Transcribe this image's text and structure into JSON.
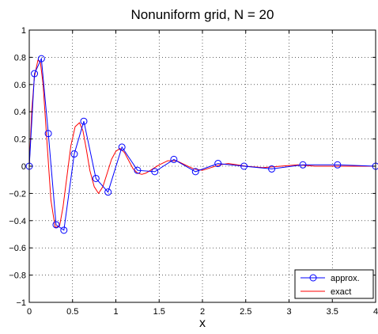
{
  "chart_data": {
    "type": "line",
    "title": "Nonuniform grid, N = 20",
    "xlabel": "x",
    "ylabel": "",
    "xlim": [
      0,
      4
    ],
    "ylim": [
      -1,
      1
    ],
    "xticks": [
      "0",
      "0.5",
      "1",
      "1.5",
      "2",
      "2.5",
      "3",
      "3.5",
      "4"
    ],
    "yticks": [
      "−1",
      "−0.8",
      "−0.6",
      "−0.4",
      "−0.2",
      "0",
      "0.2",
      "0.4",
      "0.6",
      "0.8",
      "1"
    ],
    "grid": true,
    "legend_position": "bottom-right",
    "series": [
      {
        "name": "approx.",
        "color": "#0000ff",
        "marker": "circle",
        "x": [
          0.0,
          0.06,
          0.14,
          0.22,
          0.31,
          0.4,
          0.52,
          0.63,
          0.77,
          0.91,
          1.07,
          1.25,
          1.45,
          1.67,
          1.92,
          2.18,
          2.48,
          2.8,
          3.16,
          3.56,
          4.0
        ],
        "y": [
          0.0,
          0.68,
          0.79,
          0.24,
          -0.43,
          -0.47,
          0.09,
          0.33,
          -0.09,
          -0.19,
          0.14,
          -0.03,
          -0.04,
          0.05,
          -0.04,
          0.02,
          0.0,
          -0.02,
          0.01,
          0.01,
          0.0
        ]
      },
      {
        "name": "exact",
        "color": "#ff0000",
        "marker": "none",
        "x": [
          0.0,
          0.03,
          0.06,
          0.1,
          0.13,
          0.16,
          0.2,
          0.25,
          0.3,
          0.35,
          0.39,
          0.43,
          0.48,
          0.53,
          0.58,
          0.62,
          0.66,
          0.7,
          0.75,
          0.8,
          0.85,
          0.9,
          0.95,
          1.0,
          1.05,
          1.1,
          1.15,
          1.2,
          1.25,
          1.3,
          1.35,
          1.4,
          1.45,
          1.5,
          1.6,
          1.7,
          1.8,
          1.9,
          2.0,
          2.1,
          2.2,
          2.3,
          2.4,
          2.5,
          2.7,
          2.9,
          3.1,
          3.3,
          3.5,
          3.7,
          4.0
        ],
        "y": [
          0.0,
          0.42,
          0.66,
          0.78,
          0.76,
          0.6,
          0.22,
          -0.25,
          -0.45,
          -0.44,
          -0.3,
          -0.1,
          0.15,
          0.29,
          0.32,
          0.26,
          0.12,
          -0.03,
          -0.15,
          -0.2,
          -0.15,
          -0.05,
          0.05,
          0.11,
          0.13,
          0.1,
          0.04,
          -0.02,
          -0.05,
          -0.06,
          -0.05,
          -0.03,
          -0.01,
          0.01,
          0.04,
          0.04,
          0.01,
          -0.02,
          -0.03,
          -0.01,
          0.01,
          0.02,
          0.01,
          0.0,
          -0.01,
          0.0,
          0.01,
          0.0,
          0.0,
          0.0,
          0.0
        ]
      }
    ]
  }
}
